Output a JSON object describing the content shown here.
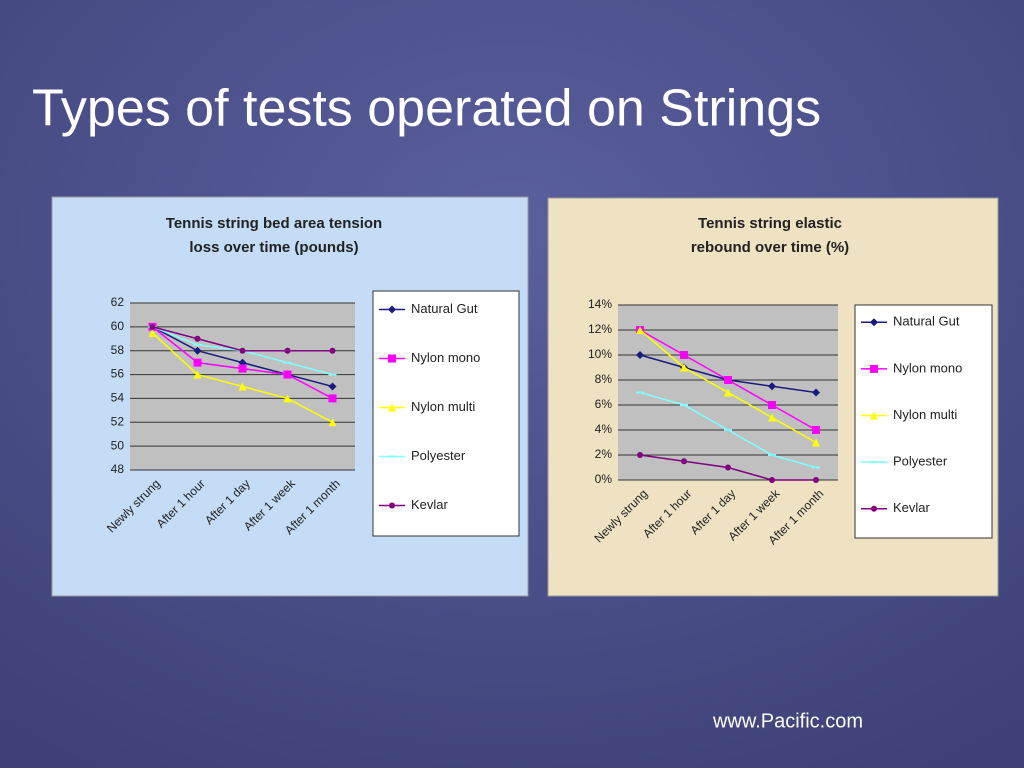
{
  "slide": {
    "title": "Types of tests operated on Strings",
    "footer": "www.Pacific.com"
  },
  "chart_data": [
    {
      "type": "line",
      "title": "Tennis string bed area tension loss over time (pounds)",
      "categories": [
        "Newly strung",
        "After 1 hour",
        "After 1 day",
        "After 1 week",
        "After 1 month"
      ],
      "ylim": [
        48,
        62
      ],
      "yticks": [
        48,
        50,
        52,
        54,
        56,
        58,
        60,
        62
      ],
      "grid": true,
      "legend": "right",
      "series": [
        {
          "name": "Natural Gut",
          "color": "#1a1a80",
          "values": [
            60,
            58,
            57,
            56,
            55
          ]
        },
        {
          "name": "Nylon mono",
          "color": "#ff00ff",
          "values": [
            60,
            57,
            56.5,
            56,
            54
          ]
        },
        {
          "name": "Nylon multi",
          "color": "#ffff00",
          "values": [
            59.5,
            56,
            55,
            54,
            52
          ]
        },
        {
          "name": "Polyester",
          "color": "#80ffff",
          "values": [
            60,
            58.5,
            58,
            57,
            56
          ]
        },
        {
          "name": "Kevlar",
          "color": "#800080",
          "values": [
            60,
            59,
            58,
            58,
            58
          ]
        }
      ]
    },
    {
      "type": "line",
      "title": "Tennis string elastic rebound over time (%)",
      "categories": [
        "Newly strung",
        "After 1 hour",
        "After 1 day",
        "After 1 week",
        "After 1 month"
      ],
      "ylim": [
        0,
        14
      ],
      "yticks": [
        {
          "value": 0,
          "label": "0%"
        },
        {
          "value": 2,
          "label": "2%"
        },
        {
          "value": 4,
          "label": "4%"
        },
        {
          "value": 6,
          "label": "6%"
        },
        {
          "value": 8,
          "label": "8%"
        },
        {
          "value": 10,
          "label": "10%"
        },
        {
          "value": 12,
          "label": "12%"
        },
        {
          "value": 14,
          "label": "14%"
        }
      ],
      "grid": true,
      "legend": "right",
      "series": [
        {
          "name": "Natural Gut",
          "color": "#1a1a80",
          "values": [
            10,
            9,
            8,
            7.5,
            7
          ]
        },
        {
          "name": "Nylon mono",
          "color": "#ff00ff",
          "values": [
            12,
            10,
            8,
            6,
            4
          ]
        },
        {
          "name": "Nylon multi",
          "color": "#ffff00",
          "values": [
            12,
            9,
            7,
            5,
            3
          ]
        },
        {
          "name": "Polyester",
          "color": "#80ffff",
          "values": [
            7,
            6,
            4,
            2,
            1
          ]
        },
        {
          "name": "Kevlar",
          "color": "#800080",
          "values": [
            2,
            1.5,
            1,
            0,
            0
          ]
        }
      ]
    }
  ]
}
